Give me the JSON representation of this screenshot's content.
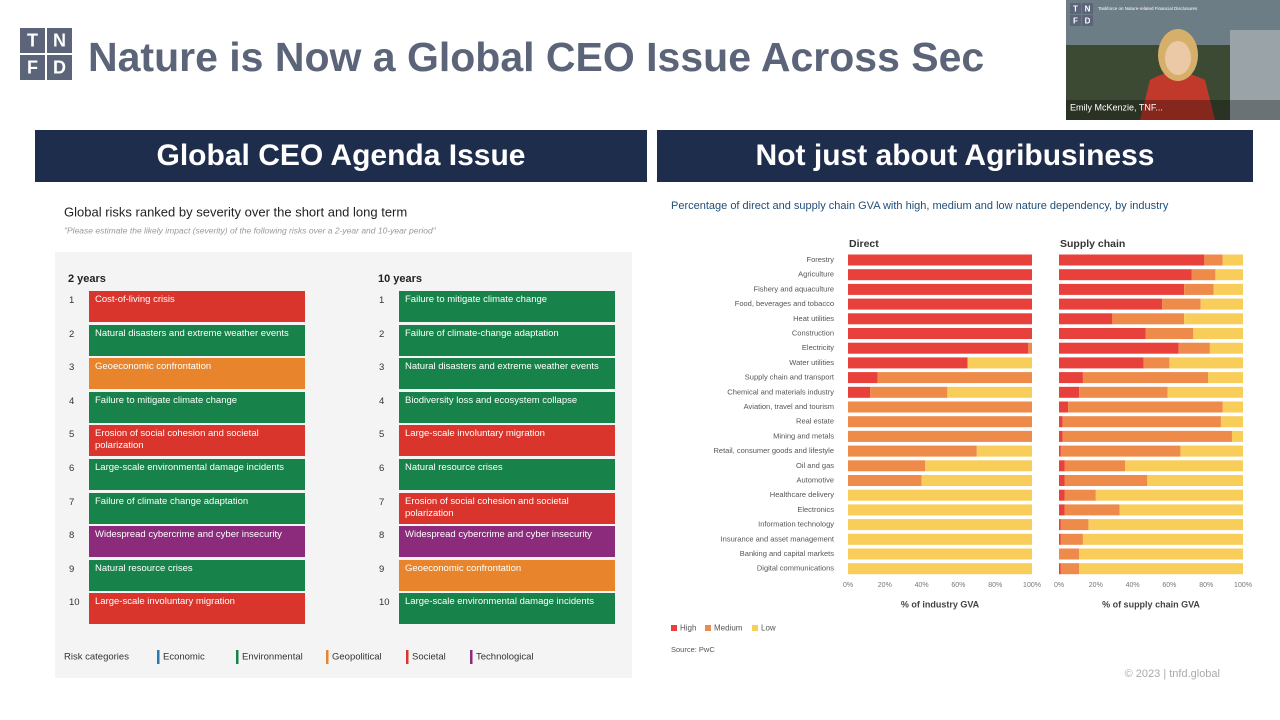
{
  "header": {
    "logo_letters": [
      "T",
      "N",
      "F",
      "D"
    ],
    "title": "Nature is Now a Global CEO Issue Across Sec"
  },
  "video": {
    "logo_letters": [
      "T",
      "N",
      "F",
      "D"
    ],
    "logo_text": "Taskforce on Nature-related Financial Disclosures",
    "name": "Emily McKenzie, TNF..."
  },
  "left_panel": {
    "heading": "Global CEO Agenda Issue",
    "title": "Global risks ranked by severity over the short and long term",
    "subtitle": "\"Please estimate the likely impact (severity) of the following risks over a 2-year and 10-year period\"",
    "columns": [
      {
        "heading": "2 years",
        "items": [
          {
            "rank": 1,
            "label": "Cost-of-living crisis",
            "color": "#d9352c"
          },
          {
            "rank": 2,
            "label": "Natural disasters and extreme weather events",
            "color": "#17834a"
          },
          {
            "rank": 3,
            "label": "Geoeconomic confrontation",
            "color": "#e8842c"
          },
          {
            "rank": 4,
            "label": "Failure to mitigate climate change",
            "color": "#17834a"
          },
          {
            "rank": 5,
            "label": "Erosion of social cohesion and societal polarization",
            "color": "#d9352c"
          },
          {
            "rank": 6,
            "label": "Large-scale environmental damage incidents",
            "color": "#17834a"
          },
          {
            "rank": 7,
            "label": "Failure of climate change adaptation",
            "color": "#17834a"
          },
          {
            "rank": 8,
            "label": "Widespread cybercrime and cyber insecurity",
            "color": "#8c2a7c"
          },
          {
            "rank": 9,
            "label": "Natural resource crises",
            "color": "#17834a"
          },
          {
            "rank": 10,
            "label": "Large-scale involuntary migration",
            "color": "#d9352c"
          }
        ]
      },
      {
        "heading": "10 years",
        "items": [
          {
            "rank": 1,
            "label": "Failure to mitigate climate change",
            "color": "#17834a"
          },
          {
            "rank": 2,
            "label": "Failure of climate-change adaptation",
            "color": "#17834a"
          },
          {
            "rank": 3,
            "label": "Natural disasters and extreme weather events",
            "color": "#17834a"
          },
          {
            "rank": 4,
            "label": "Biodiversity loss and ecosystem collapse",
            "color": "#17834a"
          },
          {
            "rank": 5,
            "label": "Large-scale involuntary migration",
            "color": "#d9352c"
          },
          {
            "rank": 6,
            "label": "Natural resource crises",
            "color": "#17834a"
          },
          {
            "rank": 7,
            "label": "Erosion of social cohesion and societal polarization",
            "color": "#d9352c"
          },
          {
            "rank": 8,
            "label": "Widespread cybercrime and cyber insecurity",
            "color": "#8c2a7c"
          },
          {
            "rank": 9,
            "label": "Geoeconomic confrontation",
            "color": "#e8842c"
          },
          {
            "rank": 10,
            "label": "Large-scale environmental damage incidents",
            "color": "#17834a"
          }
        ]
      }
    ],
    "legend_title": "Risk categories",
    "categories": [
      {
        "name": "Economic",
        "color": "#2a78b0"
      },
      {
        "name": "Environmental",
        "color": "#17834a"
      },
      {
        "name": "Geopolitical",
        "color": "#e8842c"
      },
      {
        "name": "Societal",
        "color": "#d9352c"
      },
      {
        "name": "Technological",
        "color": "#8c2a7c"
      }
    ]
  },
  "right_panel": {
    "heading": "Not just about Agribusiness",
    "title": "Percentage of direct and supply chain GVA with high, medium and low nature dependency, by industry",
    "source": "Source: PwC"
  },
  "chart_data": [
    {
      "type": "bar",
      "orientation": "horizontal",
      "stacked": true,
      "title": "Direct",
      "categories": [
        "Forestry",
        "Agriculture",
        "Fishery and aquaculture",
        "Food, beverages and tobacco",
        "Heat utilities",
        "Construction",
        "Electricity",
        "Water utilities",
        "Supply chain and transport",
        "Chemical and materials industry",
        "Aviation, travel and tourism",
        "Real estate",
        "Mining and metals",
        "Retail, consumer goods and lifestyle",
        "Oil and gas",
        "Automotive",
        "Healthcare delivery",
        "Electronics",
        "Information technology",
        "Insurance and asset management",
        "Banking and capital markets",
        "Digital communications"
      ],
      "series": [
        {
          "name": "High",
          "color": "#e8403a",
          "values": [
            100,
            100,
            100,
            100,
            100,
            100,
            98,
            65,
            16,
            12,
            0,
            0,
            0,
            0,
            0,
            0,
            0,
            0,
            0,
            0,
            0,
            0
          ]
        },
        {
          "name": "Medium",
          "color": "#ee8a4a",
          "values": [
            0,
            0,
            0,
            0,
            0,
            0,
            2,
            0,
            84,
            42,
            100,
            100,
            100,
            70,
            42,
            40,
            0,
            0,
            0,
            0,
            0,
            0
          ]
        },
        {
          "name": "Low",
          "color": "#f9cd5a",
          "values": [
            0,
            0,
            0,
            0,
            0,
            0,
            0,
            35,
            0,
            46,
            0,
            0,
            0,
            30,
            58,
            60,
            100,
            100,
            100,
            100,
            100,
            100
          ]
        }
      ],
      "xlim": [
        0,
        100
      ],
      "xticks": [
        {
          "value": 0,
          "label": "0%"
        },
        {
          "value": 20,
          "label": "20%"
        },
        {
          "value": 40,
          "label": "40%"
        },
        {
          "value": 60,
          "label": "60%"
        },
        {
          "value": 80,
          "label": "80%"
        },
        {
          "value": 100,
          "label": "100%"
        }
      ],
      "xlabel": "% of industry GVA"
    },
    {
      "type": "bar",
      "orientation": "horizontal",
      "stacked": true,
      "title": "Supply chain",
      "series": [
        {
          "color": "#e8403a",
          "values": [
            79,
            72,
            68,
            56,
            29,
            47,
            65,
            46,
            13,
            11,
            5,
            2,
            2,
            1,
            3,
            3,
            3,
            3,
            1,
            1,
            0,
            1
          ]
        },
        {
          "color": "#ee8a4a",
          "values": [
            10,
            13,
            16,
            21,
            39,
            26,
            17,
            14,
            68,
            48,
            84,
            86,
            92,
            65,
            33,
            45,
            17,
            30,
            15,
            12,
            11,
            10
          ]
        },
        {
          "color": "#f9cd5a",
          "values": [
            11,
            15,
            16,
            23,
            32,
            27,
            18,
            40,
            19,
            41,
            11,
            12,
            6,
            34,
            64,
            52,
            80,
            67,
            84,
            87,
            89,
            89
          ]
        }
      ],
      "xlim": [
        0,
        100
      ],
      "xticks": [
        {
          "value": 0,
          "label": "0%"
        },
        {
          "value": 20,
          "label": "20%"
        },
        {
          "value": 40,
          "label": "40%"
        },
        {
          "value": 60,
          "label": "60%"
        },
        {
          "value": 80,
          "label": "80%"
        },
        {
          "value": 100,
          "label": "100%"
        }
      ],
      "xlabel": "% of supply chain GVA"
    }
  ],
  "footer": "© 2023 | tnfd.global"
}
